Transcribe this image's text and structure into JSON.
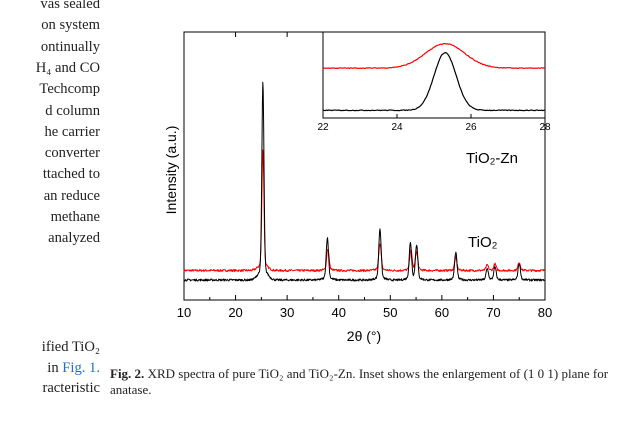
{
  "left_text": {
    "block1": [
      "vas sealed",
      "on system",
      "ontinually",
      "H₄ and CO",
      "Techcomp",
      "d column",
      "he carrier",
      "converter",
      "ttached to",
      "an reduce",
      "methane",
      "analyzed"
    ],
    "block2": {
      "line1": "ified TiO₂",
      "line2_prefix": "in ",
      "line2_link": "Fig. 1.",
      "line3": "racteristic"
    }
  },
  "caption": {
    "label": "Fig. 2.",
    "text": "XRD spectra of pure TiO₂ and TiO₂-Zn. Inset shows the enlargement of (1 0 1) plane for anatase."
  },
  "chart_data": {
    "type": "line",
    "xlabel": "2θ (°)",
    "ylabel": "Intensity (a.u.)",
    "xlim": [
      10,
      80
    ],
    "xticks": [
      10,
      20,
      30,
      40,
      50,
      60,
      70,
      80
    ],
    "series": [
      {
        "name": "TiO₂-Zn",
        "color": "#ff0000",
        "baseline": 0.55,
        "peaks": [
          {
            "x": 25.3,
            "h": 6.6
          },
          {
            "x": 37.9,
            "h": 1.2
          },
          {
            "x": 48.0,
            "h": 1.5
          },
          {
            "x": 54.0,
            "h": 1.1
          },
          {
            "x": 55.1,
            "h": 1.0
          },
          {
            "x": 62.7,
            "h": 0.7
          },
          {
            "x": 68.8,
            "h": 0.3
          },
          {
            "x": 70.3,
            "h": 0.35
          },
          {
            "x": 75.0,
            "h": 0.45
          }
        ]
      },
      {
        "name": "TiO₂",
        "color": "#000000",
        "baseline": 0.0,
        "peaks": [
          {
            "x": 25.3,
            "h": 10.8
          },
          {
            "x": 37.8,
            "h": 2.3
          },
          {
            "x": 48.0,
            "h": 2.8
          },
          {
            "x": 53.9,
            "h": 2.0
          },
          {
            "x": 55.1,
            "h": 1.9
          },
          {
            "x": 62.7,
            "h": 1.5
          },
          {
            "x": 68.8,
            "h": 0.6
          },
          {
            "x": 70.3,
            "h": 0.7
          },
          {
            "x": 75.0,
            "h": 0.9
          }
        ]
      }
    ],
    "inset": {
      "xlim": [
        22,
        28
      ],
      "xticks": [
        22,
        24,
        26,
        28
      ],
      "series": [
        {
          "name": "TiO₂-Zn",
          "color": "#ff0000",
          "center": 25.3,
          "width": 0.75,
          "baseline": 0.62,
          "height": 0.33
        },
        {
          "name": "TiO₂",
          "color": "#000000",
          "center": 25.3,
          "width": 0.42,
          "baseline": 0.05,
          "height": 0.78
        }
      ]
    }
  }
}
